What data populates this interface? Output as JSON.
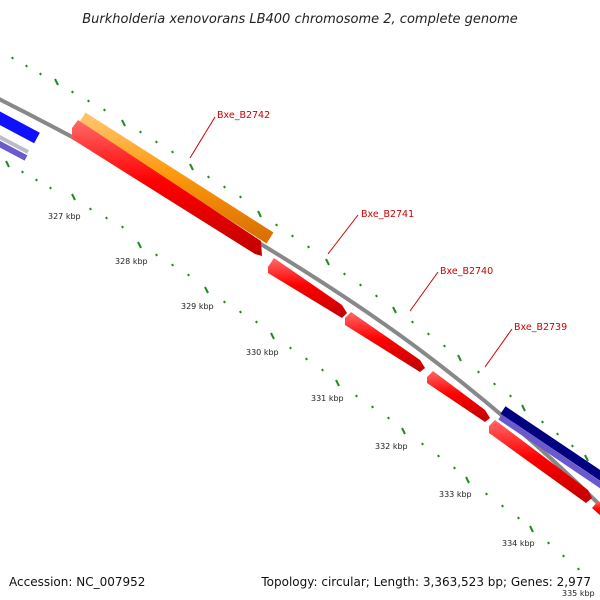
{
  "title": "Burkholderia xenovorans LB400 chromosome 2, complete genome",
  "accession": "Accession: NC_007952",
  "topology": "Topology: circular; Length: 3,363,523 bp; Genes: 2,977",
  "ticks": [
    "327 kbp",
    "328 kbp",
    "329 kbp",
    "330 kbp",
    "331 kbp",
    "332 kbp",
    "333 kbp",
    "334 kbp",
    "335 kbp"
  ],
  "genes": [
    {
      "name": "Bxe_B2742"
    },
    {
      "name": "Bxe_B2741"
    },
    {
      "name": "Bxe_B2740"
    },
    {
      "name": "Bxe_B2739"
    }
  ],
  "colors": {
    "backbone": "#888888",
    "forward_gene": "#ff8c00",
    "reverse_gene": "#ff0000",
    "blue_gene": "#0000ff",
    "navy_gene": "#000080",
    "purple_gene": "#6a5acd",
    "tick_marks": "#228b22",
    "gene_label": "#cc0000"
  }
}
